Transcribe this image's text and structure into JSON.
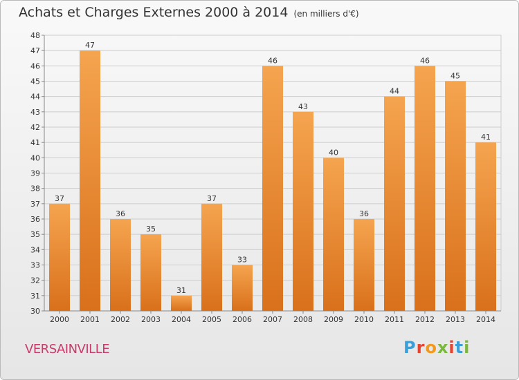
{
  "header": {
    "title": "Achats et Charges Externes 2000 à 2014",
    "unit": "(en milliers d'€)"
  },
  "footer": {
    "place": "VERSAINVILLE",
    "logo_letters": [
      "P",
      "r",
      "o",
      "x",
      "i",
      "t",
      "i"
    ],
    "logo_colors": [
      "#3a9fd8",
      "#e8432e",
      "#f39a1e",
      "#7ab83c",
      "#e8432e",
      "#3a9fd8",
      "#7ab83c"
    ]
  },
  "colors": {
    "bar_light": "#f5a44f",
    "bar_dark": "#d9701b",
    "grid": "#cccccc"
  },
  "chart_data": {
    "type": "bar",
    "categories": [
      "2000",
      "2001",
      "2002",
      "2003",
      "2004",
      "2005",
      "2006",
      "2007",
      "2008",
      "2009",
      "2010",
      "2011",
      "2012",
      "2013",
      "2014"
    ],
    "values": [
      37,
      47,
      36,
      35,
      31,
      37,
      33,
      46,
      43,
      40,
      36,
      44,
      46,
      45,
      41
    ],
    "ylim": [
      30,
      48
    ],
    "yticks": [
      30,
      31,
      32,
      33,
      34,
      35,
      36,
      37,
      38,
      39,
      40,
      41,
      42,
      43,
      44,
      45,
      46,
      47,
      48
    ],
    "grid": true
  }
}
